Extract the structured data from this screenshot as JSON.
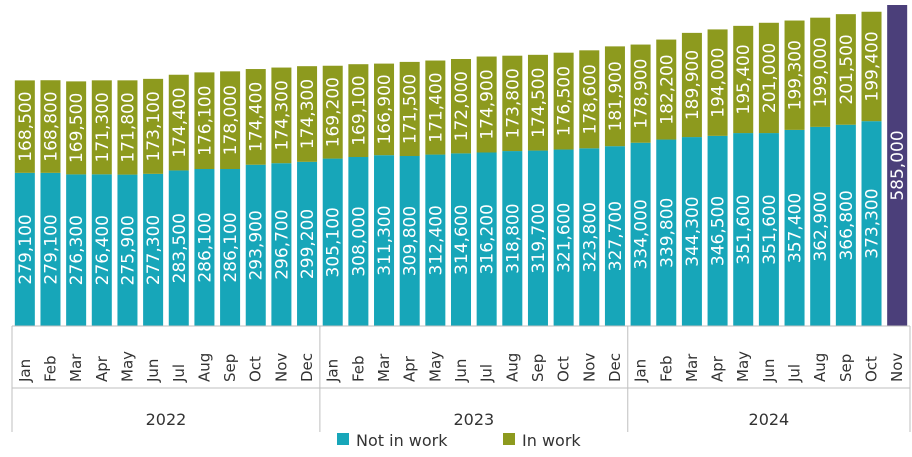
{
  "chart_data": {
    "type": "bar",
    "stacked": true,
    "categories": [
      "Jan",
      "Feb",
      "Mar",
      "Apr",
      "May",
      "Jun",
      "Jul",
      "Aug",
      "Sep",
      "Oct",
      "Nov",
      "Dec",
      "Jan",
      "Feb",
      "Mar",
      "Apr",
      "May",
      "Jun",
      "Jul",
      "Aug",
      "Sep",
      "Oct",
      "Nov",
      "Dec",
      "Jan",
      "Feb",
      "Mar",
      "Apr",
      "May",
      "Jun",
      "Jul",
      "Aug",
      "Sep",
      "Oct",
      "Nov"
    ],
    "groups": [
      {
        "label": "2022",
        "start": 0,
        "count": 12
      },
      {
        "label": "2023",
        "start": 12,
        "count": 12
      },
      {
        "label": "2024",
        "start": 24,
        "count": 11
      }
    ],
    "series": [
      {
        "name": "Not in work",
        "color": "#17a6b9",
        "values": [
          279100,
          279100,
          276300,
          276400,
          275900,
          277300,
          283500,
          286100,
          286100,
          293900,
          296700,
          299200,
          305100,
          308000,
          311300,
          309800,
          312400,
          314600,
          316200,
          318800,
          319700,
          321600,
          323800,
          327700,
          334000,
          339800,
          344300,
          346500,
          351600,
          351600,
          357400,
          362900,
          366800,
          373300,
          null
        ],
        "labels": [
          "279,100",
          "279,100",
          "276,300",
          "276,400",
          "275,900",
          "277,300",
          "283,500",
          "286,100",
          "286,100",
          "293,900",
          "296,700",
          "299,200",
          "305,100",
          "308,000",
          "311,300",
          "309,800",
          "312,400",
          "314,600",
          "316,200",
          "318,800",
          "319,700",
          "321,600",
          "323,800",
          "327,700",
          "334,000",
          "339,800",
          "344,300",
          "346,500",
          "351,600",
          "351,600",
          "357,400",
          "362,900",
          "366,800",
          "373,300",
          ""
        ]
      },
      {
        "name": "In work",
        "color": "#8d9a1e",
        "values": [
          168500,
          168800,
          169500,
          171300,
          171800,
          173100,
          174400,
          176100,
          178000,
          174400,
          174300,
          174300,
          169200,
          169100,
          166900,
          171500,
          171400,
          172000,
          174900,
          173800,
          174500,
          176500,
          178600,
          181900,
          178900,
          182200,
          189900,
          194000,
          195400,
          201000,
          199300,
          199000,
          201500,
          199400,
          null
        ],
        "labels": [
          "168,500",
          "168,800",
          "169,500",
          "171,300",
          "171,800",
          "173,100",
          "174,400",
          "176,100",
          "178,000",
          "174,400",
          "174,300",
          "174,300",
          "169,200",
          "169,100",
          "166,900",
          "171,500",
          "171,400",
          "172,000",
          "174,900",
          "173,800",
          "174,500",
          "176,500",
          "178,600",
          "181,900",
          "178,900",
          "182,200",
          "189,900",
          "194,000",
          "195,400",
          "201,000",
          "199,300",
          "199,000",
          "201,500",
          "199,400",
          ""
        ]
      }
    ],
    "total_only": {
      "index": 34,
      "value": 585000,
      "label": "585,000",
      "color": "#4b3f7a"
    },
    "ylim": [
      0,
      585000
    ],
    "legend": {
      "position": "bottom",
      "items": [
        "Not in work",
        "In work"
      ]
    },
    "title": "",
    "xlabel": "",
    "ylabel": ""
  }
}
